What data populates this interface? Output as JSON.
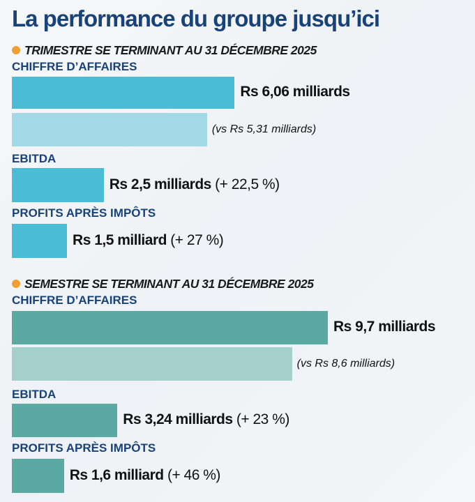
{
  "chart_data": {
    "type": "bar",
    "title": "La performance du groupe jusqu’ici",
    "orientation": "horizontal",
    "colors": {
      "quarter": "#4bbcd6",
      "quarter_prev": "#a3d9e6",
      "semester": "#5aaaa3",
      "semester_prev": "#a4cfca",
      "bullet": "#f0a030",
      "title": "#17427a"
    },
    "sections": [
      {
        "header": "TRIMESTRE SE TERMINANT AU 31 DÉCEMBRE 2025",
        "items": [
          {
            "label": "CHIFFRE D’AFFAIRES",
            "value": 6.06,
            "value_label": "Rs 6,06 milliards",
            "previous": 5.31,
            "previous_label": "(vs Rs 5,31 milliards)"
          },
          {
            "label": "EBITDA",
            "value": 2.5,
            "value_label": "Rs 2,5 milliards",
            "change_label": "(+ 22,5 %)"
          },
          {
            "label": "PROFITS APRÈS IMPÔTS",
            "value": 1.5,
            "value_label": "Rs 1,5 milliard",
            "change_label": "(+ 27 %)"
          }
        ]
      },
      {
        "header": "SEMESTRE SE TERMINANT AU 31 DÉCEMBRE 2025",
        "items": [
          {
            "label": "CHIFFRE D’AFFAIRES",
            "value": 9.7,
            "value_label": "Rs 9,7 milliards",
            "previous": 8.6,
            "previous_label": "(vs Rs 8,6 milliards)"
          },
          {
            "label": "EBITDA",
            "value": 3.24,
            "value_label": "Rs 3,24 milliards",
            "change_label": "(+ 23 %)"
          },
          {
            "label": "PROFITS APRÈS IMPÔTS",
            "value": 1.6,
            "value_label": "Rs 1,6 milliard",
            "change_label": "(+ 46 %)"
          }
        ]
      }
    ]
  }
}
